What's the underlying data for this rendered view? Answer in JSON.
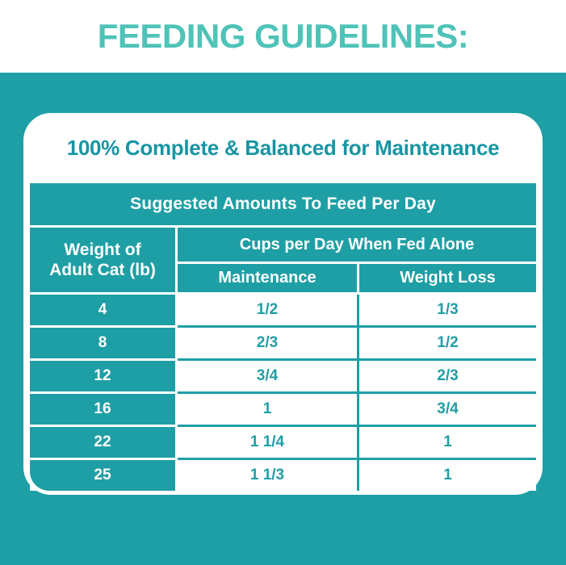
{
  "colors": {
    "teal": "#1E9FA5",
    "light_teal": "#4FC3B8",
    "heading_teal": "#1795A3"
  },
  "header": {
    "title": "FEEDING GUIDELINES:"
  },
  "card": {
    "heading": "100% Complete & Balanced for Maintenance"
  },
  "table": {
    "title": "Suggested Amounts To Feed Per Day",
    "weight_header": [
      "Weight of",
      "Adult Cat (lb)"
    ],
    "cups_header": "Cups per Day When Fed Alone",
    "columns": [
      "Maintenance",
      "Weight Loss"
    ],
    "rows": [
      {
        "weight": "4",
        "maintenance": "1/2",
        "weight_loss": "1/3"
      },
      {
        "weight": "8",
        "maintenance": "2/3",
        "weight_loss": "1/2"
      },
      {
        "weight": "12",
        "maintenance": "3/4",
        "weight_loss": "2/3"
      },
      {
        "weight": "16",
        "maintenance": "1",
        "weight_loss": "3/4"
      },
      {
        "weight": "22",
        "maintenance": "1 1/4",
        "weight_loss": "1"
      },
      {
        "weight": "25",
        "maintenance": "1 1/3",
        "weight_loss": "1"
      }
    ]
  },
  "chart_data": {
    "type": "table",
    "title": "Suggested Amounts To Feed Per Day",
    "subtitle": "100% Complete & Balanced for Maintenance",
    "page_heading": "FEEDING GUIDELINES:",
    "columns": [
      "Weight of Adult Cat (lb)",
      "Maintenance (cups per day when fed alone)",
      "Weight Loss (cups per day when fed alone)"
    ],
    "rows": [
      [
        "4",
        "1/2",
        "1/3"
      ],
      [
        "8",
        "2/3",
        "1/2"
      ],
      [
        "12",
        "3/4",
        "2/3"
      ],
      [
        "16",
        "1",
        "3/4"
      ],
      [
        "22",
        "1 1/4",
        "1"
      ],
      [
        "25",
        "1 1/3",
        "1"
      ]
    ]
  }
}
